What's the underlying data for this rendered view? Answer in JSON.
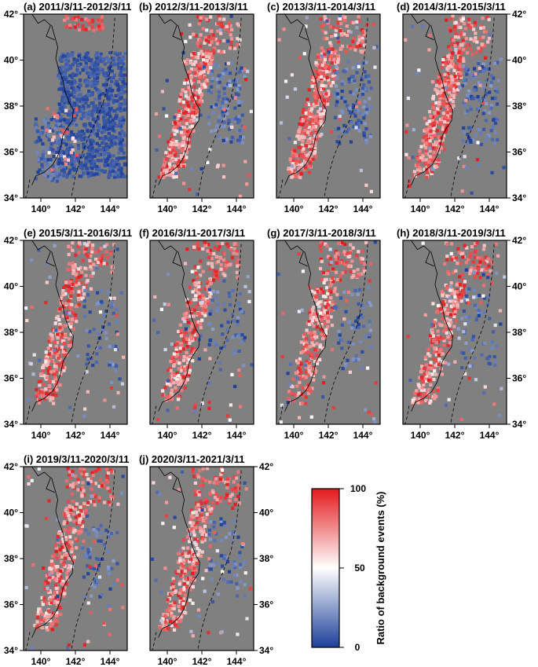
{
  "figure": {
    "panels": [
      {
        "label": "(a)",
        "period": "2011/3/11-2012/3/11",
        "pattern": "wide"
      },
      {
        "label": "(b)",
        "period": "2012/3/11-2013/3/11",
        "pattern": "mixed"
      },
      {
        "label": "(c)",
        "period": "2013/3/11-2014/3/11",
        "pattern": "mixed"
      },
      {
        "label": "(d)",
        "period": "2014/3/11-2015/3/11",
        "pattern": "mixed"
      },
      {
        "label": "(e)",
        "period": "2015/3/11-2016/3/11",
        "pattern": "sparse"
      },
      {
        "label": "(f)",
        "period": "2016/3/11-2017/3/11",
        "pattern": "sparse"
      },
      {
        "label": "(g)",
        "period": "2017/3/11-2018/3/11",
        "pattern": "sparse"
      },
      {
        "label": "(h)",
        "period": "2018/3/11-2019/3/11",
        "pattern": "sparse"
      },
      {
        "label": "(i)",
        "period": "2019/3/11-2020/3/11",
        "pattern": "sparse"
      },
      {
        "label": "(j)",
        "period": "2020/3/11-2021/3/11",
        "pattern": "sparse"
      }
    ],
    "lon_ticks": [
      "140°",
      "142°",
      "144°"
    ],
    "lat_ticks": [
      "34°",
      "36°",
      "38°",
      "40°",
      "42°"
    ],
    "lon_range": [
      139,
      145
    ],
    "lat_range": [
      34,
      42
    ],
    "colorbar": {
      "label": "Ratio of background events (%)",
      "ticks": [
        "0",
        "50",
        "100"
      ],
      "colors": [
        "#1c3f99",
        "#ffffff",
        "#e31a1c"
      ]
    },
    "background_color": "#808080"
  }
}
